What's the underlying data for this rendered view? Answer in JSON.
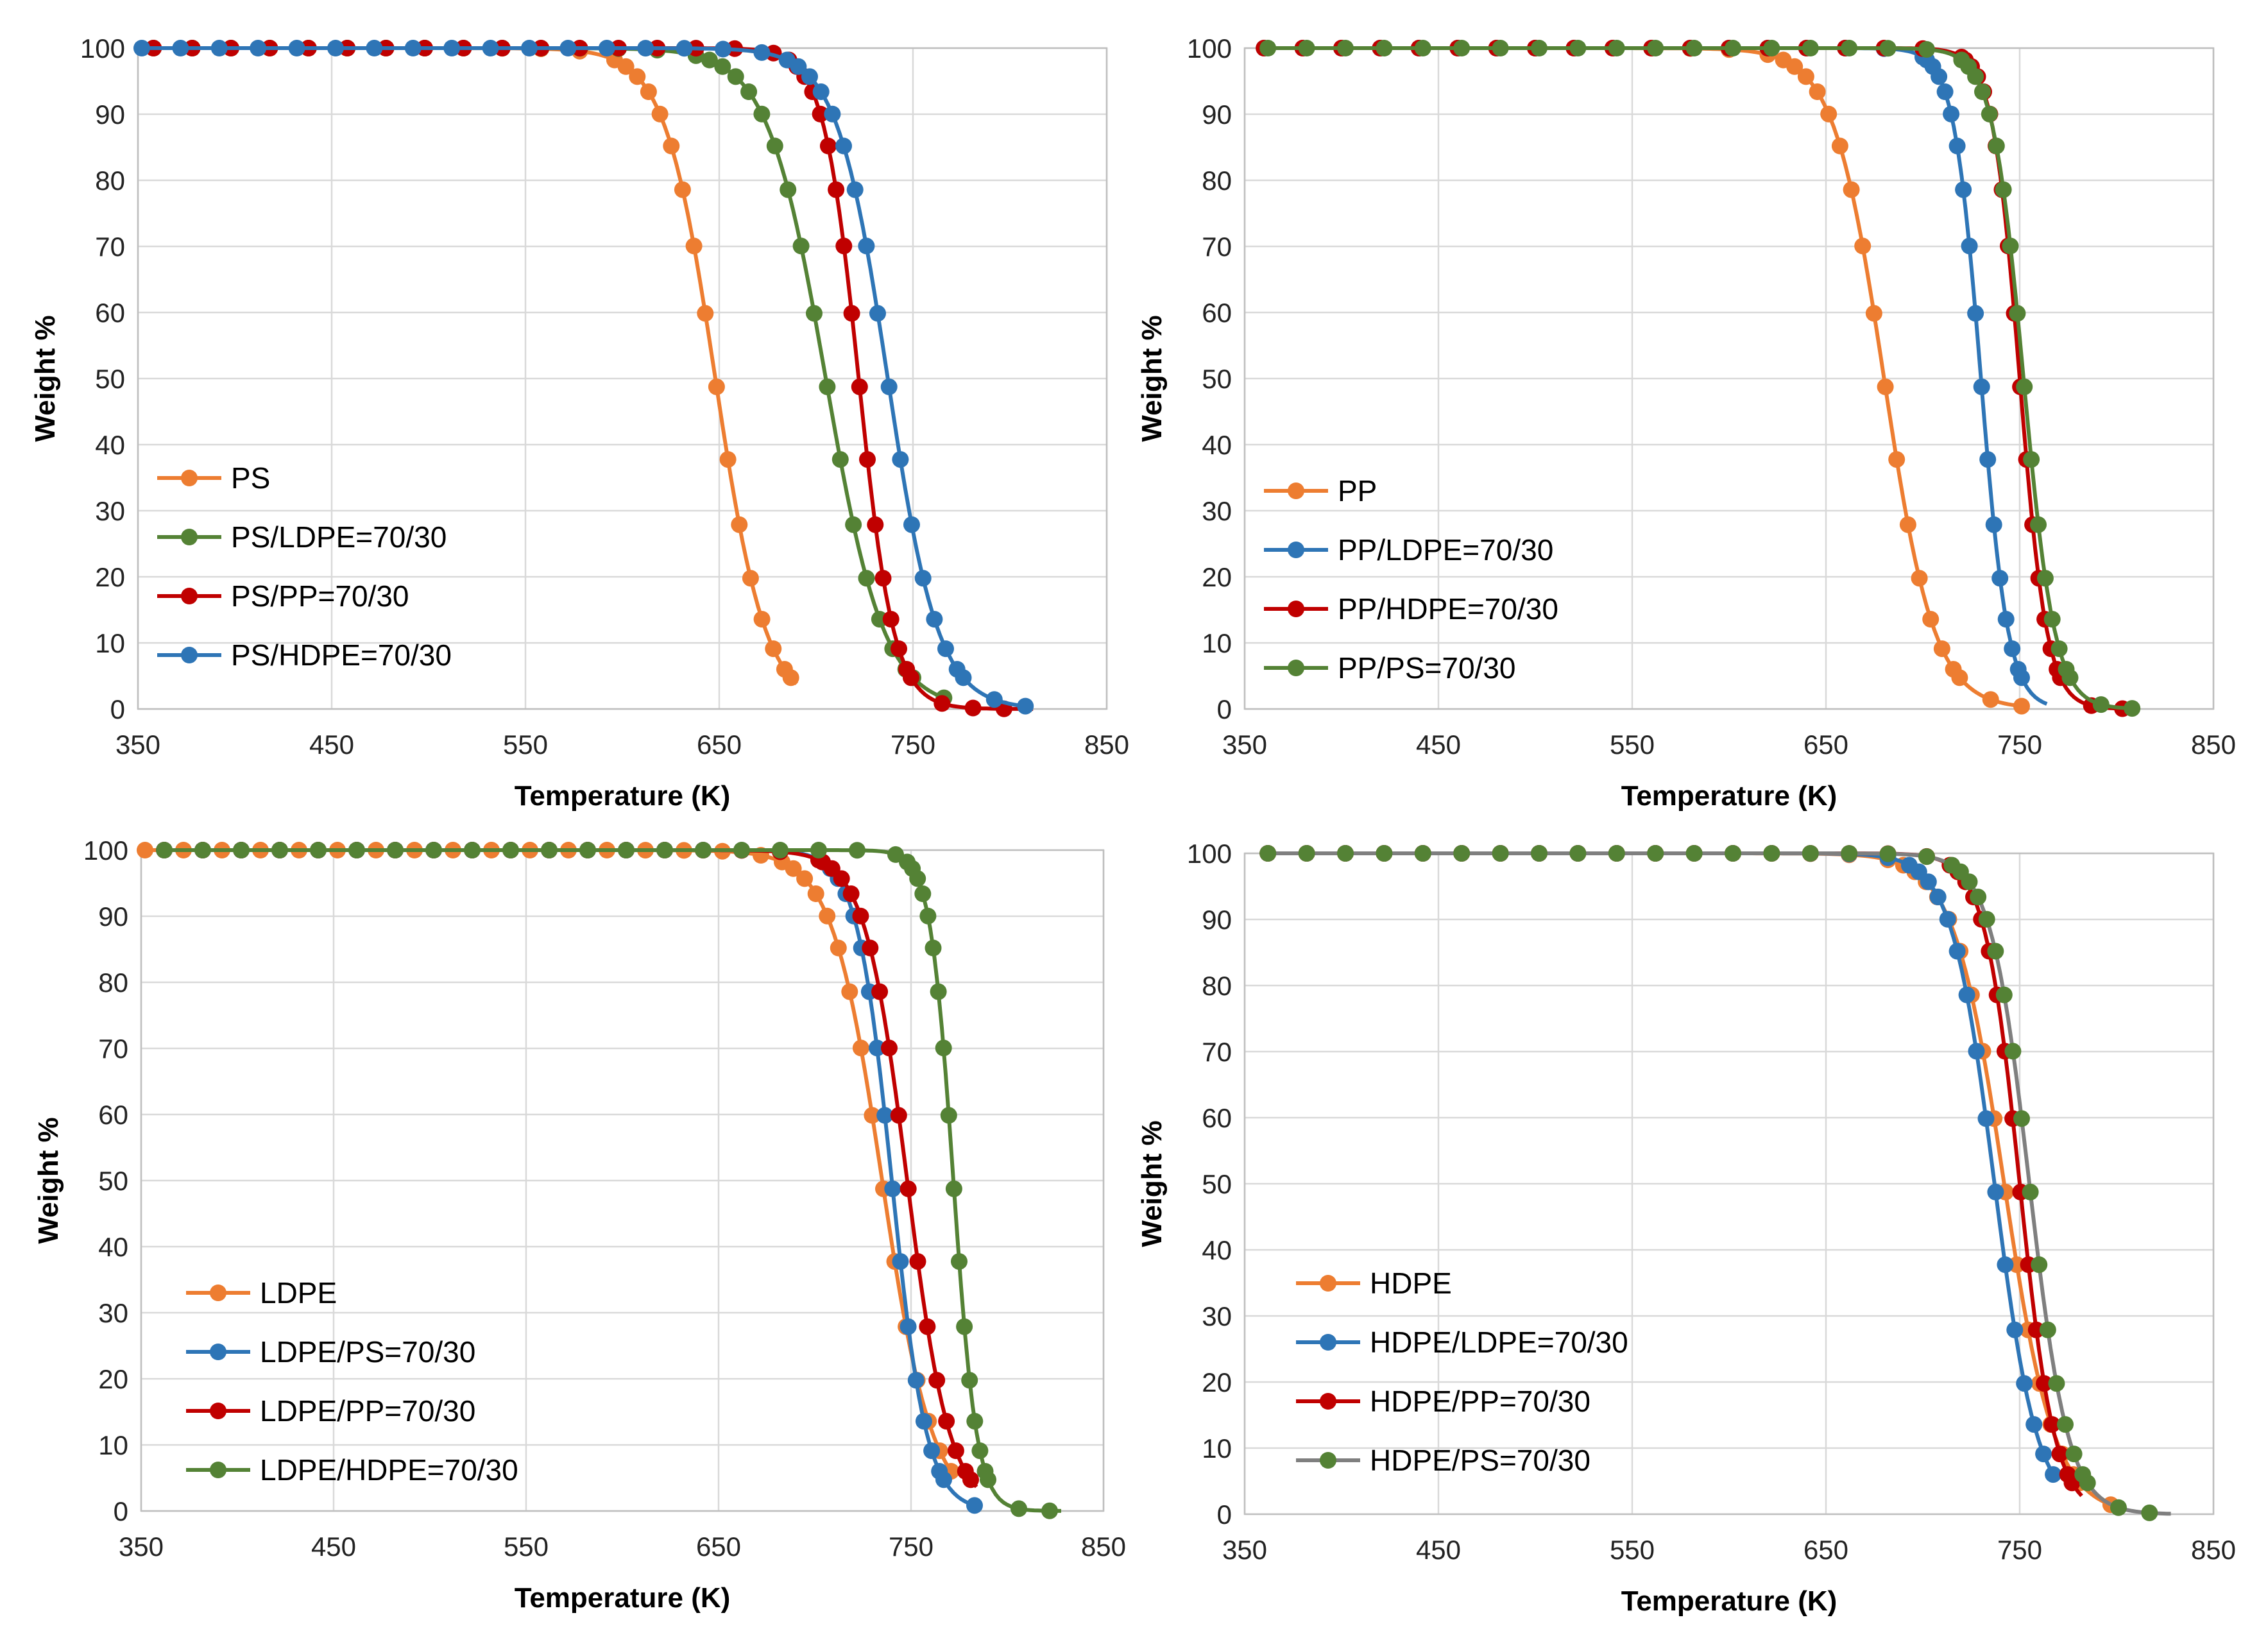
{
  "chart_data": [
    {
      "type": "line",
      "xlabel": "Temperature (K)",
      "ylabel": "Weight %",
      "xlim": [
        350,
        850
      ],
      "ylim": [
        0,
        100
      ],
      "xticks": [
        "350",
        "450",
        "550",
        "650",
        "750",
        "850"
      ],
      "yticks": [
        "0",
        "10",
        "20",
        "30",
        "40",
        "50",
        "60",
        "70",
        "80",
        "90",
        "100"
      ],
      "legend_position": "lower-left",
      "series": [
        {
          "name": "PS",
          "color": "#ED7D31",
          "mid": 648,
          "width": 13,
          "start": 358,
          "end": 690
        },
        {
          "name": "PS/LDPE=70/30",
          "color": "#548235",
          "mid": 705,
          "width": 15,
          "start": 358,
          "end": 770
        },
        {
          "name": "PS/PP=70/30",
          "color": "#C00000",
          "mid": 722,
          "width": 9,
          "start": 358,
          "end": 812
        },
        {
          "name": "PS/HDPE=70/30",
          "color": "#2E75B6",
          "mid": 737,
          "width": 13,
          "start": 352,
          "end": 808
        }
      ]
    },
    {
      "type": "line",
      "xlabel": "Temperature (K)",
      "ylabel": "Weight %",
      "xlim": [
        350,
        850
      ],
      "ylim": [
        0,
        100
      ],
      "xticks": [
        "350",
        "450",
        "550",
        "650",
        "750",
        "850"
      ],
      "yticks": [
        "0",
        "10",
        "20",
        "30",
        "40",
        "50",
        "60",
        "70",
        "80",
        "90",
        "100"
      ],
      "legend_position": "lower-left",
      "series": [
        {
          "name": "PP",
          "color": "#ED7D31",
          "mid": 680,
          "width": 13,
          "start": 360,
          "end": 755
        },
        {
          "name": "PP/LDPE=70/30",
          "color": "#2E75B6",
          "mid": 730,
          "width": 7,
          "start": 360,
          "end": 765
        },
        {
          "name": "PP/HDPE=70/30",
          "color": "#C00000",
          "mid": 750,
          "width": 7,
          "start": 360,
          "end": 812
        },
        {
          "name": "PP/PS=70/30",
          "color": "#548235",
          "mid": 752,
          "width": 8,
          "start": 362,
          "end": 812
        }
      ]
    },
    {
      "type": "line",
      "xlabel": "Temperature (K)",
      "ylabel": "Weight %",
      "xlim": [
        350,
        850
      ],
      "ylim": [
        0,
        100
      ],
      "xticks": [
        "350",
        "450",
        "550",
        "650",
        "750",
        "850"
      ],
      "yticks": [
        "0",
        "10",
        "20",
        "30",
        "40",
        "50",
        "60",
        "70",
        "80",
        "90",
        "100"
      ],
      "legend_position": "lower-left",
      "series": [
        {
          "name": "LDPE",
          "color": "#ED7D31",
          "mid": 735,
          "width": 13,
          "start": 352,
          "end": 772
        },
        {
          "name": "LDPE/PS=70/30",
          "color": "#2E75B6",
          "mid": 740,
          "width": 9,
          "start": 362,
          "end": 785
        },
        {
          "name": "LDPE/PP=70/30",
          "color": "#C00000",
          "mid": 748,
          "width": 11,
          "start": 362,
          "end": 785
        },
        {
          "name": "LDPE/HDPE=70/30",
          "color": "#548235",
          "mid": 772,
          "width": 6,
          "start": 362,
          "end": 828
        }
      ]
    },
    {
      "type": "line",
      "xlabel": "Temperature (K)",
      "ylabel": "Weight %",
      "xlim": [
        350,
        850
      ],
      "ylim": [
        0,
        100
      ],
      "xticks": [
        "350",
        "450",
        "550",
        "650",
        "750",
        "850"
      ],
      "yticks": [
        "0",
        "10",
        "20",
        "30",
        "40",
        "50",
        "60",
        "70",
        "80",
        "90",
        "100"
      ],
      "legend_position": "lower-left",
      "series": [
        {
          "name": "HDPE",
          "color": "#ED7D31",
          "mid": 742,
          "width": 13,
          "start": 362,
          "end": 800
        },
        {
          "name": "HDPE/LDPE=70/30",
          "color": "#2E75B6",
          "mid": 737,
          "width": 11,
          "start": 362,
          "end": 768
        },
        {
          "name": "HDPE/PP=70/30",
          "color": "#C00000",
          "mid": 750,
          "width": 9,
          "start": 362,
          "end": 782
        },
        {
          "name": "HDPE/PS=70/30",
          "color": "#548235",
          "line_color": "#7F7F7F",
          "mid": 755,
          "width": 10,
          "start": 362,
          "end": 828
        }
      ]
    }
  ]
}
